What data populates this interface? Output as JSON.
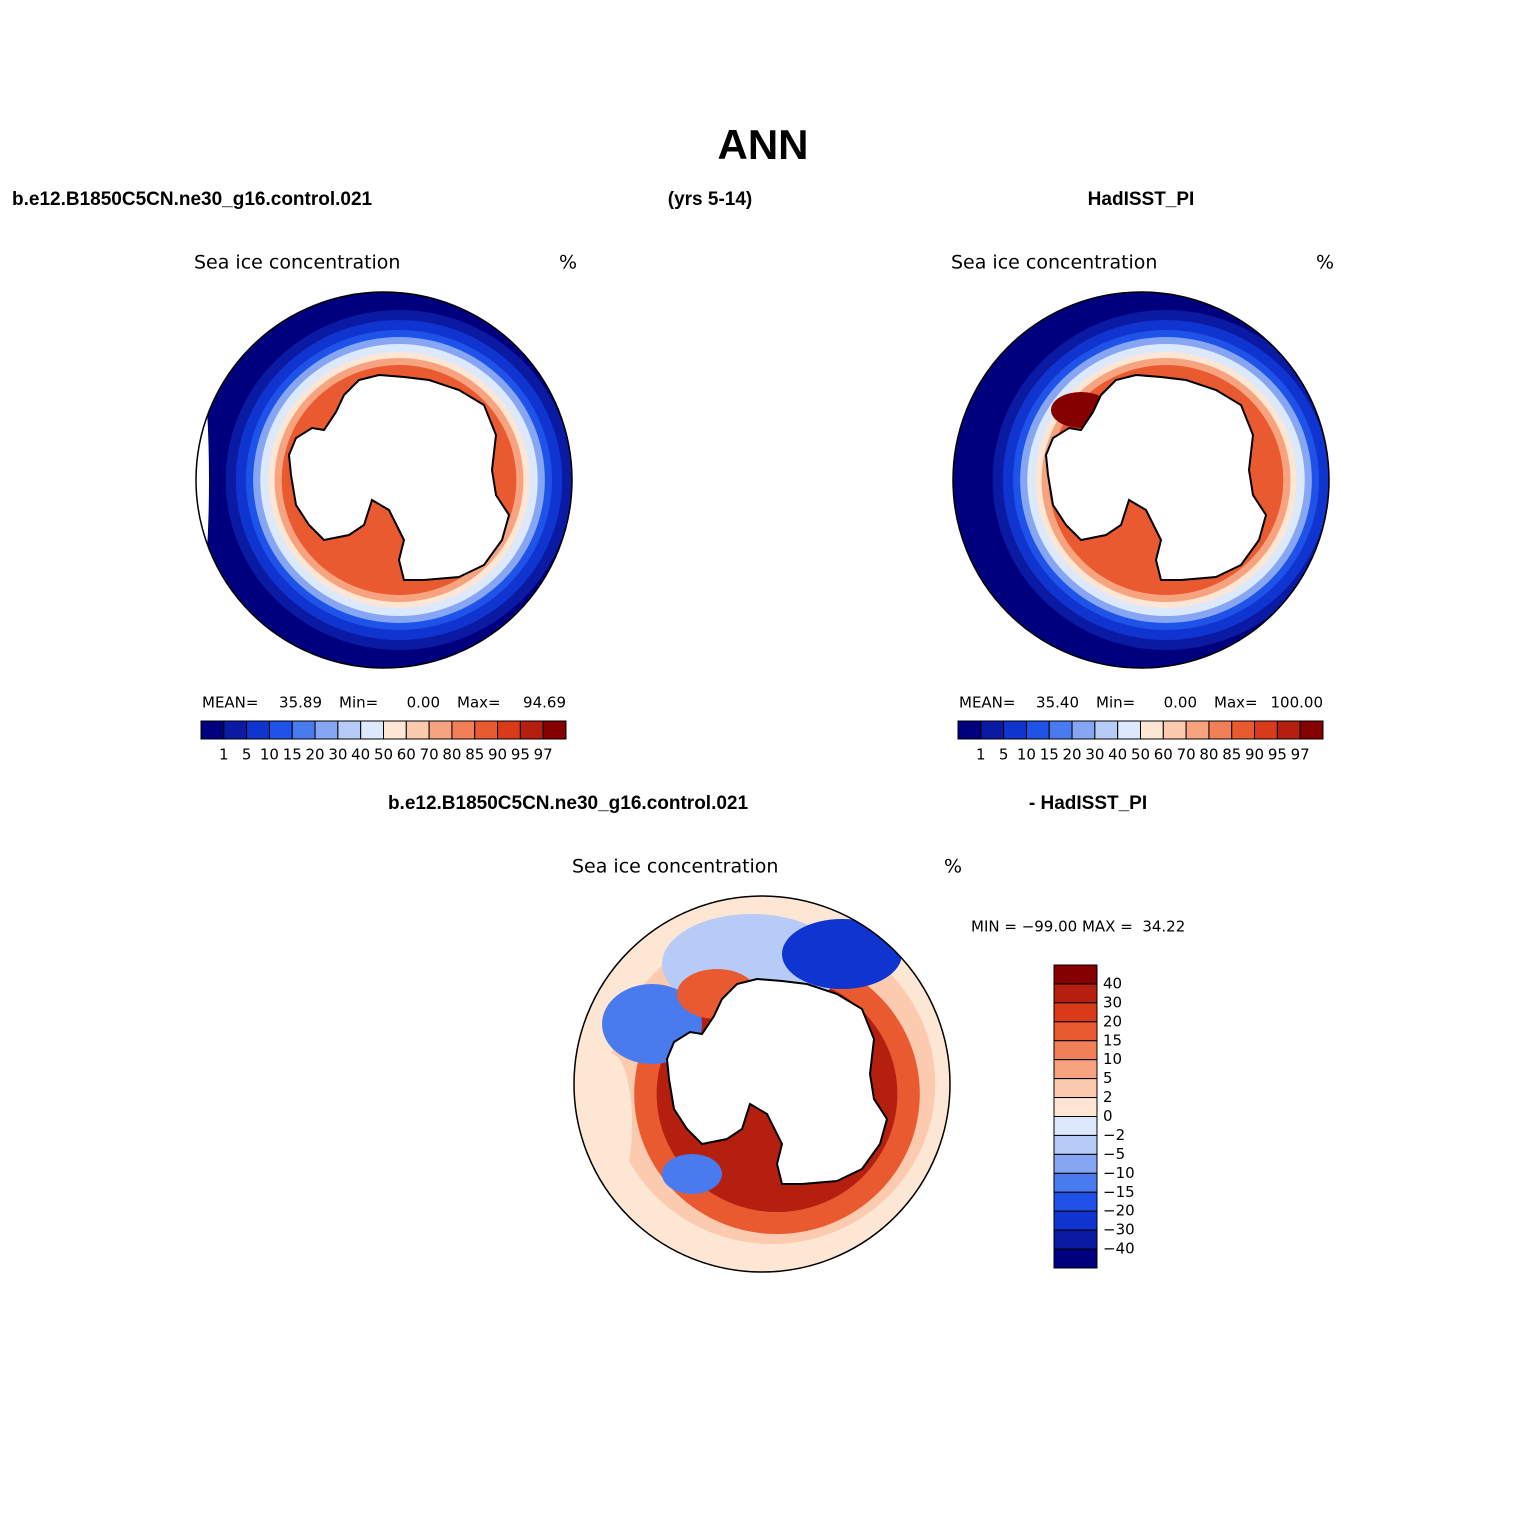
{
  "title": "ANN",
  "header": {
    "left": "b.e12.B1850C5CN.ne30_g16.control.021",
    "center": "(yrs 5-14)",
    "right": "HadISST_PI"
  },
  "panels": [
    {
      "title": "Sea ice concentration",
      "units": "%",
      "stats": [
        {
          "label": "MEAN=",
          "value": "35.89"
        },
        {
          "label": "Min=",
          "value": "0.00"
        },
        {
          "label": "Max=",
          "value": "94.69"
        }
      ],
      "colorbar": {
        "labels": [
          "1",
          "5",
          "10",
          "15",
          "20",
          "30",
          "40",
          "50",
          "60",
          "70",
          "80",
          "85",
          "90",
          "95",
          "97"
        ],
        "colors": [
          "#00007f",
          "#0a1aa3",
          "#0f34cf",
          "#1f52e8",
          "#4a7bee",
          "#86a6f3",
          "#b7cbf7",
          "#dce8fb",
          "#fde6d4",
          "#fbcaaf",
          "#f7a37f",
          "#f17f58",
          "#ea5a30",
          "#d83a1a",
          "#b41f10",
          "#850000"
        ]
      }
    },
    {
      "title": "Sea ice concentration",
      "units": "%",
      "stats": [
        {
          "label": "MEAN=",
          "value": "35.40"
        },
        {
          "label": "Min=",
          "value": "0.00"
        },
        {
          "label": "Max=",
          "value": "100.00"
        }
      ],
      "colorbar": {
        "labels": [
          "1",
          "5",
          "10",
          "15",
          "20",
          "30",
          "40",
          "50",
          "60",
          "70",
          "80",
          "85",
          "90",
          "95",
          "97"
        ],
        "colors": [
          "#00007f",
          "#0a1aa3",
          "#0f34cf",
          "#1f52e8",
          "#4a7bee",
          "#86a6f3",
          "#b7cbf7",
          "#dce8fb",
          "#fde6d4",
          "#fbcaaf",
          "#f7a37f",
          "#f17f58",
          "#ea5a30",
          "#d83a1a",
          "#b41f10",
          "#850000"
        ]
      }
    }
  ],
  "difference": {
    "header_left": "b.e12.B1850C5CN.ne30_g16.control.021",
    "header_right": "- HadISST_PI",
    "title": "Sea ice concentration",
    "units": "%",
    "stats": "MIN = −99.00 MAX =  34.22",
    "colorbar": {
      "labels": [
        "40",
        "30",
        "20",
        "15",
        "10",
        "5",
        "2",
        "0",
        "−2",
        "−5",
        "−10",
        "−15",
        "−20",
        "−30",
        "−40"
      ],
      "colors": [
        "#850000",
        "#b41f10",
        "#d83a1a",
        "#ea5a30",
        "#f17f58",
        "#f7a37f",
        "#fbcaaf",
        "#fde6d4",
        "#dce8fb",
        "#b7cbf7",
        "#86a6f3",
        "#4a7bee",
        "#1f52e8",
        "#0f34cf",
        "#0a1aa3",
        "#00007f"
      ]
    }
  }
}
